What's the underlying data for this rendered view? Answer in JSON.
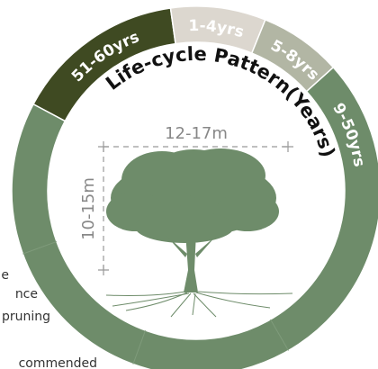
{
  "segments": [
    {
      "label": "51-60yrs"
    },
    {
      "label": "1-4yrs"
    },
    {
      "label": "5-8yrs"
    },
    {
      "label": "9-50yrs"
    }
  ],
  "title": "Life-cycle Pattern(Years)",
  "width_label": "12-17m",
  "height_label": "10-15m",
  "side_text": [
    "e",
    "nce",
    "pruning",
    "commended"
  ]
}
